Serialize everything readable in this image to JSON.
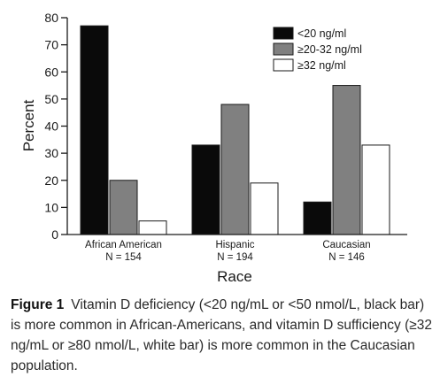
{
  "chart_data": {
    "type": "bar",
    "ylabel": "Percent",
    "xlabel": "Race",
    "ylim": [
      0,
      80
    ],
    "yticks": [
      0,
      10,
      20,
      30,
      40,
      50,
      60,
      70,
      80
    ],
    "categories": [
      "African American",
      "Hispanic",
      "Caucasian"
    ],
    "category_sublabels": [
      "N = 154",
      "N = 194",
      "N = 146"
    ],
    "series": [
      {
        "name": "<20 ng/ml",
        "color": "#0a0a0a",
        "values": [
          77,
          33,
          12
        ]
      },
      {
        "name": "≥20-32 ng/ml",
        "color": "#808080",
        "values": [
          20,
          48,
          55
        ]
      },
      {
        "name": "≥32 ng/ml",
        "color": "#ffffff",
        "values": [
          5,
          19,
          33
        ]
      }
    ],
    "legend_position": "top-right",
    "grid": false
  },
  "caption": {
    "label": "Figure 1",
    "text": "Vitamin D deficiency (<20 ng/mL or <50 nmol/L, black bar) is more common in African-Americans, and vitamin D sufficiency (≥32 ng/mL or ≥80 nmol/L, white bar) is more common in the Caucasian population."
  }
}
